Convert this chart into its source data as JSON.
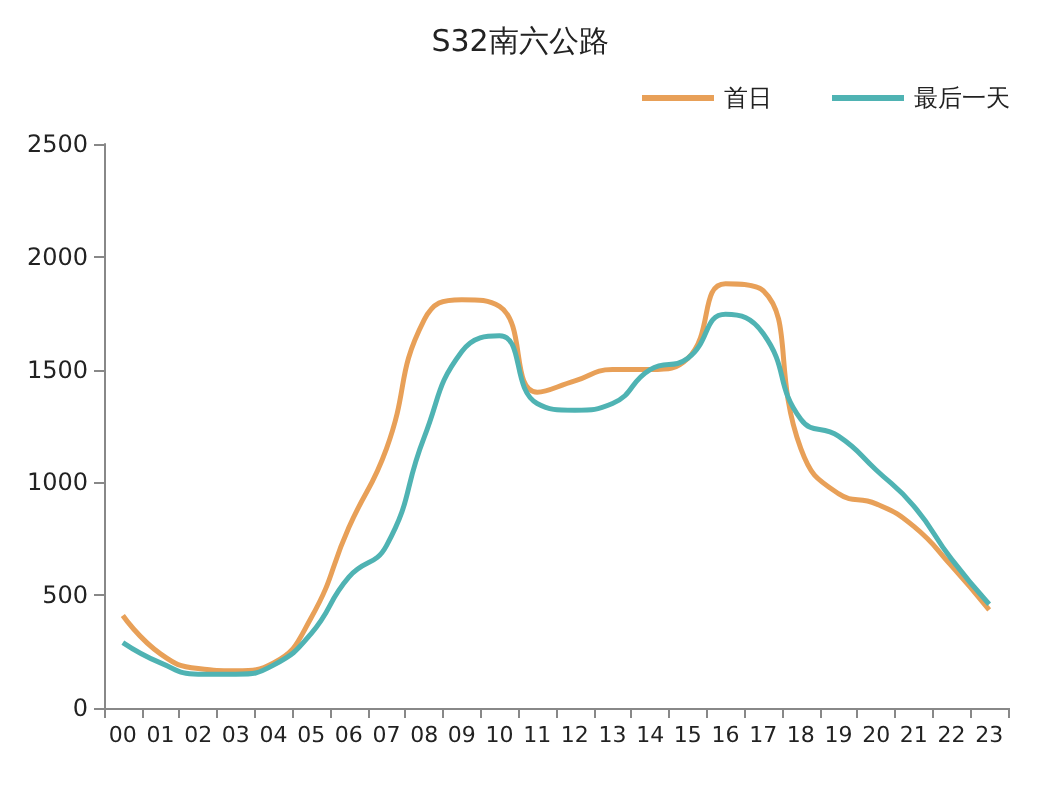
{
  "chart_data": {
    "type": "line",
    "title": "S32南六公路",
    "categories": [
      "00",
      "01",
      "02",
      "03",
      "04",
      "05",
      "06",
      "07",
      "08",
      "09",
      "10",
      "11",
      "12",
      "13",
      "14",
      "15",
      "16",
      "17",
      "18",
      "19",
      "20",
      "21",
      "22",
      "23"
    ],
    "series": [
      {
        "name": "首日",
        "color": "#e8a058",
        "values": [
          410,
          240,
          175,
          165,
          200,
          400,
          800,
          1150,
          1720,
          1810,
          1780,
          1400,
          1450,
          1500,
          1500,
          1550,
          1880,
          1850,
          1150,
          950,
          905,
          805,
          630,
          435
        ]
      },
      {
        "name": "最后一天",
        "color": "#4fb3b3",
        "values": [
          290,
          200,
          150,
          150,
          190,
          330,
          580,
          720,
          1200,
          1580,
          1650,
          1350,
          1320,
          1350,
          1500,
          1550,
          1745,
          1660,
          1280,
          1205,
          1055,
          895,
          660,
          460
        ]
      }
    ],
    "ylim": [
      0,
      2500
    ],
    "yticks": [
      0,
      500,
      1000,
      1500,
      2000,
      2500
    ],
    "grid": false,
    "legend": "top right",
    "marker": "none",
    "line_style": "solid"
  }
}
